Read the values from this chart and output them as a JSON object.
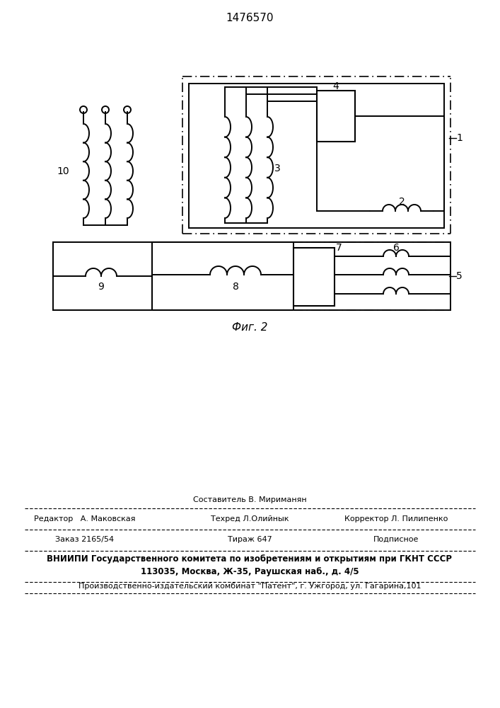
{
  "title": "1476570",
  "fig_label": "Фиг. 2",
  "bg_color": "#ffffff",
  "footer_lines": [
    "Составитель В. Мириманян",
    "Редактор   А. Маковская",
    "Техред Л.Олийнык",
    "Корректор Л. Пилипенко",
    "Заказ 2165/54",
    "Тираж 647",
    "Подписное",
    "ВНИИПИ Государственного комитета по изобретениям и открытиям при ГКНТ СССР",
    "113035, Москва, Ж-35, Раушская наб., д. 4/5",
    "Производственно-издательский комбинат \"Патент\", г. Ужгород, ул. Гагарина,101"
  ]
}
